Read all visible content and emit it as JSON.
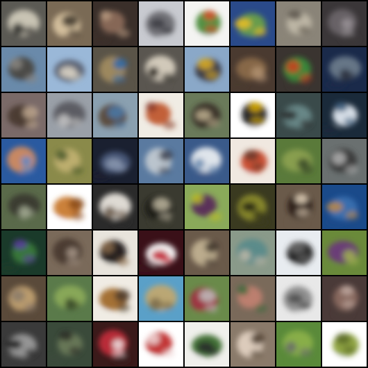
{
  "grid": {
    "rows": 8,
    "cols": 8,
    "background_color": "#000000",
    "description_free": true,
    "tiles": [
      {
        "bg": "#5b5a54",
        "blob": "#cfc9b8",
        "accent": "#2b2a28"
      },
      {
        "bg": "#7a6a55",
        "blob": "#d8c3a0",
        "accent": "#3d3428"
      },
      {
        "bg": "#3a2f2a",
        "blob": "#8a6a58",
        "accent": "#b89a80"
      },
      {
        "bg": "#c8cad0",
        "blob": "#6a6a70",
        "accent": "#3a3a40"
      },
      {
        "bg": "#f4f4f2",
        "blob": "#4a8a3a",
        "accent": "#d84a2a"
      },
      {
        "bg": "#2a4a8a",
        "blob": "#6aa04a",
        "accent": "#f0c020"
      },
      {
        "bg": "#8a8478",
        "blob": "#c0b8a8",
        "accent": "#5a544a"
      },
      {
        "bg": "#3a3638",
        "blob": "#6a6468",
        "accent": "#9a9498"
      },
      {
        "bg": "#6a8aaa",
        "blob": "#4a4640",
        "accent": "#8a8680"
      },
      {
        "bg": "#9ab8d8",
        "blob": "#5a6070",
        "accent": "#e0d8c8"
      },
      {
        "bg": "#5a5448",
        "blob": "#a08a60",
        "accent": "#2a6aaa"
      },
      {
        "bg": "#5a5650",
        "blob": "#d8d0c0",
        "accent": "#2a2620"
      },
      {
        "bg": "#8aa8c8",
        "blob": "#3a3840",
        "accent": "#e0b020"
      },
      {
        "bg": "#4a3a30",
        "blob": "#8a6a4a",
        "accent": "#b09070"
      },
      {
        "bg": "#3a3430",
        "blob": "#3a8a3a",
        "accent": "#d04020"
      },
      {
        "bg": "#1a2a4a",
        "blob": "#6a7a8a",
        "accent": "#2a3040"
      },
      {
        "bg": "#7a6a68",
        "blob": "#4a3830",
        "accent": "#c0a890"
      },
      {
        "bg": "#9aa0a8",
        "blob": "#5a5a60",
        "accent": "#c8c8c8"
      },
      {
        "bg": "#8aa0b0",
        "blob": "#5a4a3a",
        "accent": "#4a7aaa"
      },
      {
        "bg": "#f0ece4",
        "blob": "#c05a30",
        "accent": "#8a3a2a"
      },
      {
        "bg": "#6a7a5a",
        "blob": "#3a3028",
        "accent": "#c0b090"
      },
      {
        "bg": "#ffffff",
        "blob": "#1a1a1a",
        "accent": "#e0b000"
      },
      {
        "bg": "#3a4a4a",
        "blob": "#6a8a8a",
        "accent": "#2a2a2a"
      },
      {
        "bg": "#1a2a3a",
        "blob": "#e0e8f0",
        "accent": "#3a5a7a"
      },
      {
        "bg": "#2a5aa0",
        "blob": "#d08a60",
        "accent": "#5a8ac8"
      },
      {
        "bg": "#8a8a4a",
        "blob": "#c0b070",
        "accent": "#4a5a2a"
      },
      {
        "bg": "#1a2030",
        "blob": "#4a5a7a",
        "accent": "#8a98b0"
      },
      {
        "bg": "#5a7aa0",
        "blob": "#c0c8d0",
        "accent": "#3a4050"
      },
      {
        "bg": "#3a5a8a",
        "blob": "#e8ecf0",
        "accent": "#6a8ab0"
      },
      {
        "bg": "#f0e8e0",
        "blob": "#c84a2a",
        "accent": "#6a3a2a"
      },
      {
        "bg": "#5a7a3a",
        "blob": "#8aa050",
        "accent": "#3a4a2a"
      },
      {
        "bg": "#6a7070",
        "blob": "#3a3a3a",
        "accent": "#b0b0b0"
      },
      {
        "bg": "#5a6a4a",
        "blob": "#3a3a30",
        "accent": "#a0a890"
      },
      {
        "bg": "#ffffff",
        "blob": "#c87a30",
        "accent": "#8a4a1a"
      },
      {
        "bg": "#2a2a2a",
        "blob": "#e8e4dc",
        "accent": "#6a5a4a"
      },
      {
        "bg": "#3a3a30",
        "blob": "#1a1a18",
        "accent": "#c0b8a0"
      },
      {
        "bg": "#8aaa5a",
        "blob": "#5a2a5a",
        "accent": "#c0c020"
      },
      {
        "bg": "#3a3a20",
        "blob": "#8a8a2a",
        "accent": "#1a1a10"
      },
      {
        "bg": "#6a5a4a",
        "blob": "#2a1a14",
        "accent": "#e8d8c0"
      },
      {
        "bg": "#1a4a8a",
        "blob": "#3a70b0",
        "accent": "#c08a40"
      },
      {
        "bg": "#1a3a2a",
        "blob": "#3a7a3a",
        "accent": "#5a3aa0"
      },
      {
        "bg": "#7a6a5a",
        "blob": "#4a3a30",
        "accent": "#a89888"
      },
      {
        "bg": "#e8e4dc",
        "blob": "#1a1816",
        "accent": "#8a6a4a"
      },
      {
        "bg": "#3a1018",
        "blob": "#ffffff",
        "accent": "#c02030"
      },
      {
        "bg": "#6a5a4a",
        "blob": "#c0b090",
        "accent": "#3a3028"
      },
      {
        "bg": "#8a9a8a",
        "blob": "#5a8a8a",
        "accent": "#c0b8a8"
      },
      {
        "bg": "#e8ecf0",
        "blob": "#1a1a1a",
        "accent": "#6a6a6a"
      },
      {
        "bg": "#6a8a3a",
        "blob": "#6a3a7a",
        "accent": "#a0b050"
      },
      {
        "bg": "#5a4a3a",
        "blob": "#c0a070",
        "accent": "#8a7a6a"
      },
      {
        "bg": "#5a7a4a",
        "blob": "#8aaa5a",
        "accent": "#3a4a2a"
      },
      {
        "bg": "#f0ece4",
        "blob": "#a06a2a",
        "accent": "#4a3a2a"
      },
      {
        "bg": "#5aa0c8",
        "blob": "#c0a870",
        "accent": "#7a6a4a"
      },
      {
        "bg": "#6a8a4a",
        "blob": "#a03040",
        "accent": "#c0c0c0"
      },
      {
        "bg": "#7a6a5a",
        "blob": "#c08070",
        "accent": "#3a6a3a"
      },
      {
        "bg": "#e8e8e8",
        "blob": "#8a8a8a",
        "accent": "#4a4a4a"
      },
      {
        "bg": "#4a3a38",
        "blob": "#8a6a60",
        "accent": "#c0a8a0"
      },
      {
        "bg": "#3a3a3a",
        "blob": "#9a9a9a",
        "accent": "#1a1a1a"
      },
      {
        "bg": "#3a4a3a",
        "blob": "#6a7a5a",
        "accent": "#2a2a24"
      },
      {
        "bg": "#3a1a1a",
        "blob": "#c02a3a",
        "accent": "#f0e8e8"
      },
      {
        "bg": "#ffffff",
        "blob": "#c02a2a",
        "accent": "#f0d8d8"
      },
      {
        "bg": "#f0f0ec",
        "blob": "#3a6a2a",
        "accent": "#2a2a2a"
      },
      {
        "bg": "#8a7a6a",
        "blob": "#e0d0c0",
        "accent": "#4a3a2a"
      },
      {
        "bg": "#5a8a3a",
        "blob": "#8ab04a",
        "accent": "#6a6a6a"
      },
      {
        "bg": "#ffffff",
        "blob": "#8aa03a",
        "accent": "#5a6a2a"
      }
    ]
  }
}
